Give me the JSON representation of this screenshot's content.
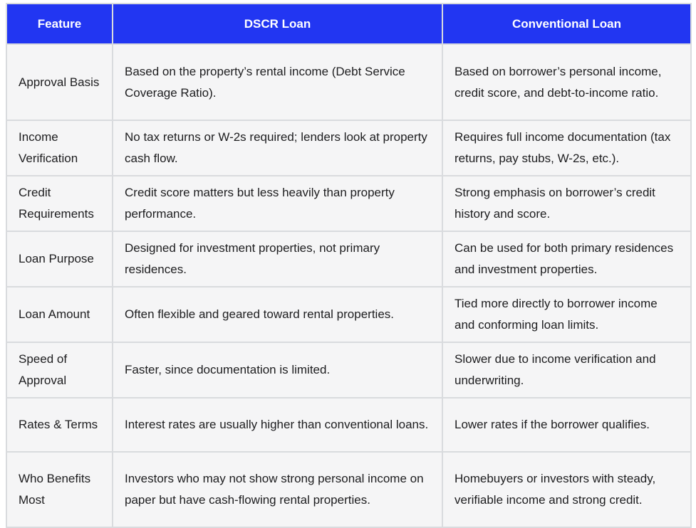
{
  "table": {
    "columns": [
      {
        "label": "Feature"
      },
      {
        "label": "DSCR Loan"
      },
      {
        "label": "Conventional Loan"
      }
    ],
    "rows": [
      {
        "feature": "Approval Basis",
        "dscr": "Based on the property’s rental income (Debt Service Coverage Ratio).",
        "conventional": "Based on borrower’s personal income, credit score, and debt-to-income ratio."
      },
      {
        "feature": "Income Verification",
        "dscr": "No tax returns or W-2s required; lenders look at property cash flow.",
        "conventional": "Requires full income documentation (tax returns, pay stubs, W-2s, etc.)."
      },
      {
        "feature": "Credit Requirements",
        "dscr": "Credit score matters but less heavily than property performance.",
        "conventional": "Strong emphasis on borrower’s credit history and score."
      },
      {
        "feature": "Loan Purpose",
        "dscr": "Designed for investment properties, not primary residences.",
        "conventional": "Can be used for both primary residences and investment properties."
      },
      {
        "feature": "Loan Amount",
        "dscr": "Often flexible and geared toward rental properties.",
        "conventional": "Tied more directly to borrower income and conforming loan limits."
      },
      {
        "feature": "Speed of Approval",
        "dscr": "Faster, since documentation is limited.",
        "conventional": "Slower due to income verification and underwriting."
      },
      {
        "feature": "Rates & Terms",
        "dscr": "Interest rates are usually higher than conventional loans.",
        "conventional": "Lower rates if the borrower qualifies."
      },
      {
        "feature": "Who Benefits Most",
        "dscr": "Investors who may not show strong personal income on paper but have cash-flowing rental properties.",
        "conventional": "Homebuyers or investors with steady, verifiable income and strong credit."
      }
    ]
  },
  "colors": {
    "header_background": "#2236F2",
    "header_text": "#FFFFFF",
    "cell_background": "#F5F5F6",
    "border": "#D9DBDE",
    "body_text": "#1D1D1F"
  }
}
